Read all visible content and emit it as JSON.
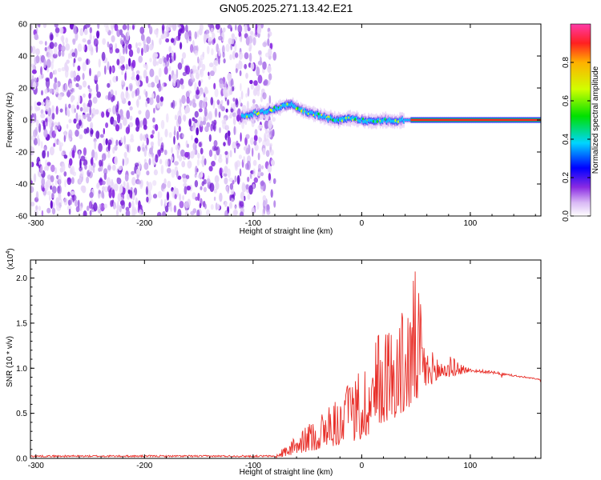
{
  "title": "GN05.2025.271.13.42.E21",
  "chart_data": [
    {
      "type": "heatmap",
      "name": "spectrogram",
      "xlabel": "Height of straight line (km)",
      "ylabel": "Frequency (Hz)",
      "xlim": [
        -305,
        165
      ],
      "ylim": [
        -60,
        60
      ],
      "xticks": [
        -300,
        -200,
        -100,
        0,
        100
      ],
      "yticks": [
        -60,
        -40,
        -20,
        0,
        20,
        40,
        60
      ],
      "noise_region_x": [
        -305,
        -80
      ],
      "signal_ridge": {
        "x": [
          -110,
          -100,
          -90,
          -80,
          -70,
          -65,
          -60,
          -55,
          -50,
          -40,
          -30,
          -20,
          -10,
          0,
          10,
          20,
          30,
          40,
          50,
          60,
          80,
          100,
          120,
          140,
          165
        ],
        "y": [
          2,
          4,
          5,
          7,
          9,
          10,
          8,
          6,
          5,
          3,
          1,
          0,
          1,
          0,
          -1,
          0,
          -1,
          0,
          0,
          0,
          0,
          0,
          0,
          0,
          0
        ]
      },
      "colorbar": {
        "label": "Normalized spectral amplitude",
        "range": [
          0,
          1
        ],
        "ticks": [
          "0.0",
          "0.2",
          "0.4",
          "0.6",
          "0.8"
        ]
      }
    },
    {
      "type": "line",
      "name": "snr",
      "xlabel": "Height of straight line (km)",
      "ylabel": "SNR (10 * v/v)",
      "scale_note": "(x10",
      "scale_exp": "4",
      "scale_close": ")",
      "xlim": [
        -305,
        165
      ],
      "ylim": [
        0,
        2.2
      ],
      "xticks": [
        -300,
        -200,
        -100,
        0,
        100
      ],
      "yticks": [
        "0.0",
        "0.5",
        "1.0",
        "1.5",
        "2.0"
      ],
      "color": "#e8302a",
      "series_profile": {
        "x": [
          -305,
          -80,
          -60,
          -40,
          -20,
          0,
          10,
          20,
          30,
          40,
          50,
          60,
          80,
          100,
          120,
          165
        ],
        "envelope": [
          0.02,
          0.03,
          0.25,
          0.5,
          0.7,
          1.0,
          1.3,
          1.5,
          1.6,
          1.7,
          2.15,
          1.2,
          1.15,
          1.0,
          0.97,
          0.88
        ],
        "baseline": [
          0.0,
          0.0,
          0.05,
          0.1,
          0.15,
          0.2,
          0.3,
          0.4,
          0.45,
          0.5,
          0.6,
          0.8,
          0.9,
          0.96,
          0.94,
          0.87
        ]
      }
    }
  ]
}
